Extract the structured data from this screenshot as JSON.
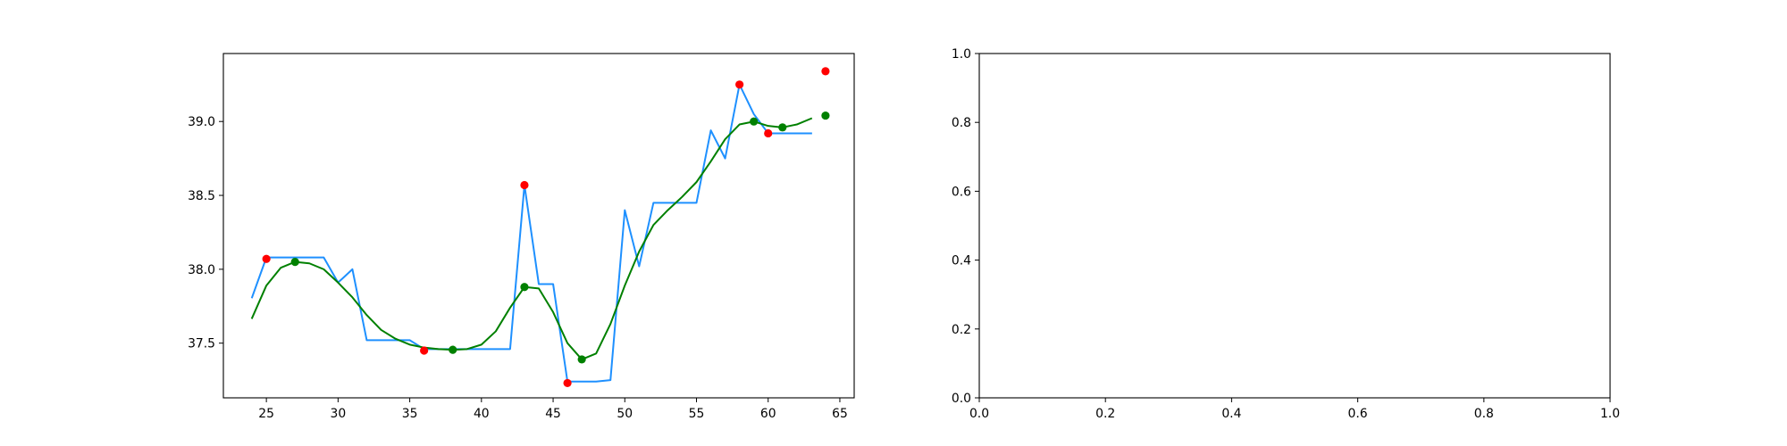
{
  "chart_data": [
    {
      "type": "line",
      "xlim": [
        22,
        66
      ],
      "ylim": [
        37.13,
        39.46
      ],
      "x_ticks": [
        25,
        30,
        35,
        40,
        45,
        50,
        55,
        60,
        65
      ],
      "y_ticks": [
        37.5,
        38.0,
        38.5,
        39.0
      ],
      "x_tick_labels": [
        "25",
        "30",
        "35",
        "40",
        "45",
        "50",
        "55",
        "60",
        "65"
      ],
      "y_tick_labels": [
        "37.5",
        "38.0",
        "38.5",
        "39.0"
      ],
      "grid": false,
      "series": [
        {
          "kind": "line",
          "color": "#1e90ff",
          "x": [
            24,
            25,
            26,
            27,
            28,
            29,
            30,
            31,
            32,
            33,
            34,
            35,
            36,
            37,
            38,
            39,
            40,
            41,
            42,
            43,
            44,
            45,
            46,
            47,
            48,
            49,
            50,
            51,
            52,
            53,
            54,
            55,
            56,
            57,
            58,
            59,
            60,
            61,
            62,
            63
          ],
          "y": [
            37.81,
            38.08,
            38.08,
            38.08,
            38.08,
            38.08,
            37.91,
            38.0,
            37.52,
            37.52,
            37.52,
            37.52,
            37.46,
            37.46,
            37.46,
            37.46,
            37.46,
            37.46,
            37.46,
            38.57,
            37.9,
            37.9,
            37.24,
            37.24,
            37.24,
            37.25,
            38.4,
            38.02,
            38.45,
            38.45,
            38.45,
            38.45,
            38.94,
            38.75,
            39.25,
            39.05,
            38.92,
            38.92,
            38.92,
            38.92
          ]
        },
        {
          "kind": "line",
          "color": "#008000",
          "x": [
            24,
            25,
            26,
            27,
            28,
            29,
            30,
            31,
            32,
            33,
            34,
            35,
            36,
            37,
            38,
            39,
            40,
            41,
            42,
            43,
            44,
            45,
            46,
            47,
            48,
            49,
            50,
            51,
            52,
            53,
            54,
            55,
            56,
            57,
            58,
            59,
            60,
            61,
            62,
            63
          ],
          "y": [
            37.67,
            37.89,
            38.01,
            38.05,
            38.04,
            38.0,
            37.91,
            37.81,
            37.69,
            37.59,
            37.53,
            37.49,
            37.47,
            37.46,
            37.455,
            37.46,
            37.49,
            37.58,
            37.74,
            37.88,
            37.87,
            37.71,
            37.5,
            37.39,
            37.43,
            37.63,
            37.89,
            38.12,
            38.3,
            38.4,
            38.49,
            38.59,
            38.73,
            38.88,
            38.98,
            39.0,
            38.97,
            38.96,
            38.98,
            39.02
          ]
        },
        {
          "kind": "scatter",
          "color": "#ff0000",
          "x": [
            25,
            36,
            43,
            46,
            58,
            60,
            64
          ],
          "y": [
            38.07,
            37.45,
            38.57,
            37.23,
            39.25,
            38.92,
            39.34
          ]
        },
        {
          "kind": "scatter",
          "color": "#008000",
          "x": [
            27,
            38,
            43,
            47,
            59,
            61,
            64
          ],
          "y": [
            38.05,
            37.455,
            37.88,
            37.39,
            39.0,
            38.96,
            39.04
          ]
        }
      ]
    },
    {
      "type": "line",
      "xlim": [
        0,
        1
      ],
      "ylim": [
        0,
        1
      ],
      "x_ticks": [
        0,
        0.2,
        0.4,
        0.6,
        0.8,
        1.0
      ],
      "y_ticks": [
        0,
        0.2,
        0.4,
        0.6,
        0.8,
        1.0
      ],
      "x_tick_labels": [
        "0.0",
        "0.2",
        "0.4",
        "0.6",
        "0.8",
        "1.0"
      ],
      "y_tick_labels": [
        "0.0",
        "0.2",
        "0.4",
        "0.6",
        "0.8",
        "1.0"
      ],
      "grid": false,
      "series": []
    }
  ]
}
